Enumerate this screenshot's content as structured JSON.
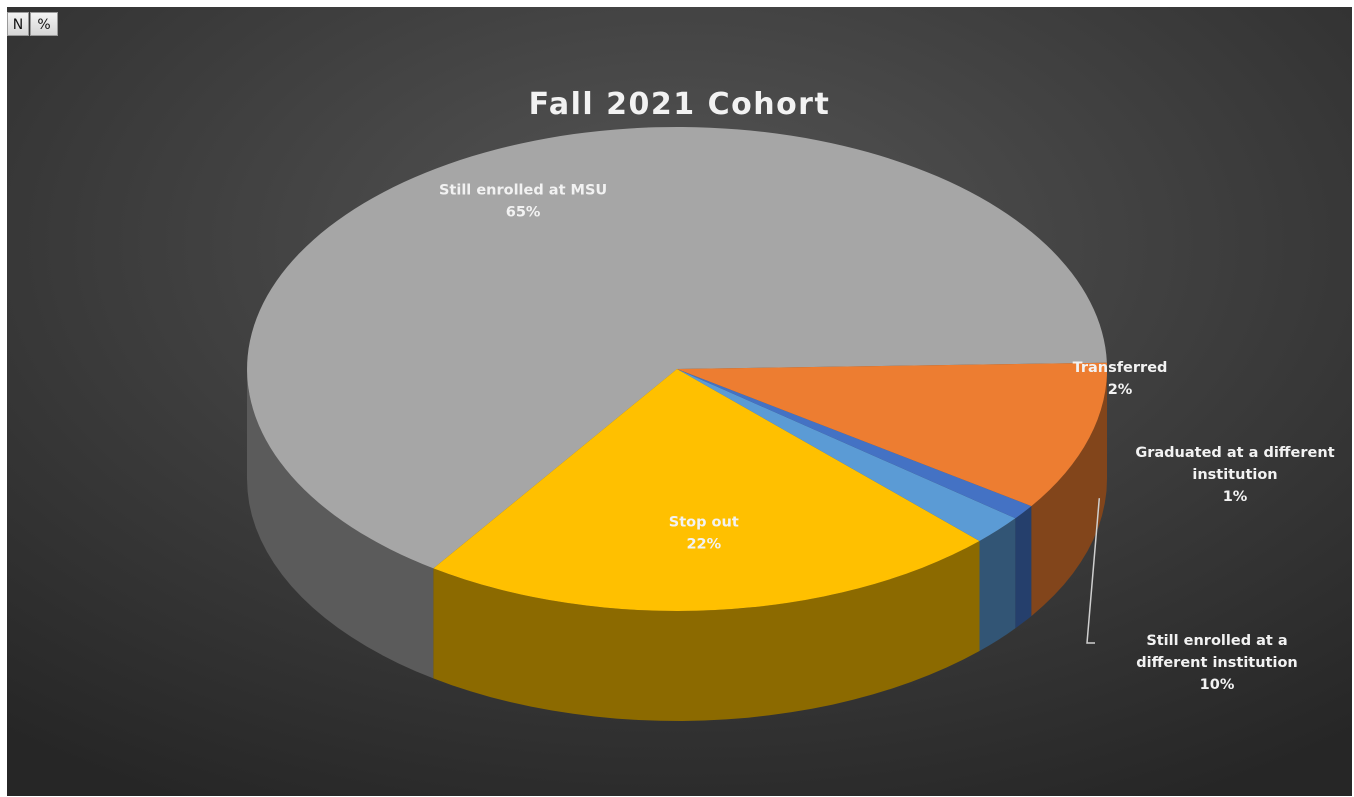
{
  "toolbar": {
    "n_label": "N",
    "percent_label": "%"
  },
  "chart_data": {
    "type": "pie",
    "style": "3d-tilted",
    "title": "Fall 2021 Cohort",
    "legend": "none",
    "slices": [
      {
        "label": "Still enrolled at MSU",
        "value": 65,
        "value_label": "65%",
        "color": "#a6a6a6"
      },
      {
        "label": "Stop out",
        "value": 22,
        "value_label": "22%",
        "color": "#ffc000"
      },
      {
        "label": "Transferred",
        "value": 2,
        "value_label": "2%",
        "color": "#5b9bd5"
      },
      {
        "label": "Graduated at a different institution",
        "value": 1,
        "value_label": "1%",
        "color": "#4472c4"
      },
      {
        "label": "Still enrolled at a different institution",
        "value": 10,
        "value_label": "10%",
        "color": "#ed7d31"
      }
    ]
  }
}
